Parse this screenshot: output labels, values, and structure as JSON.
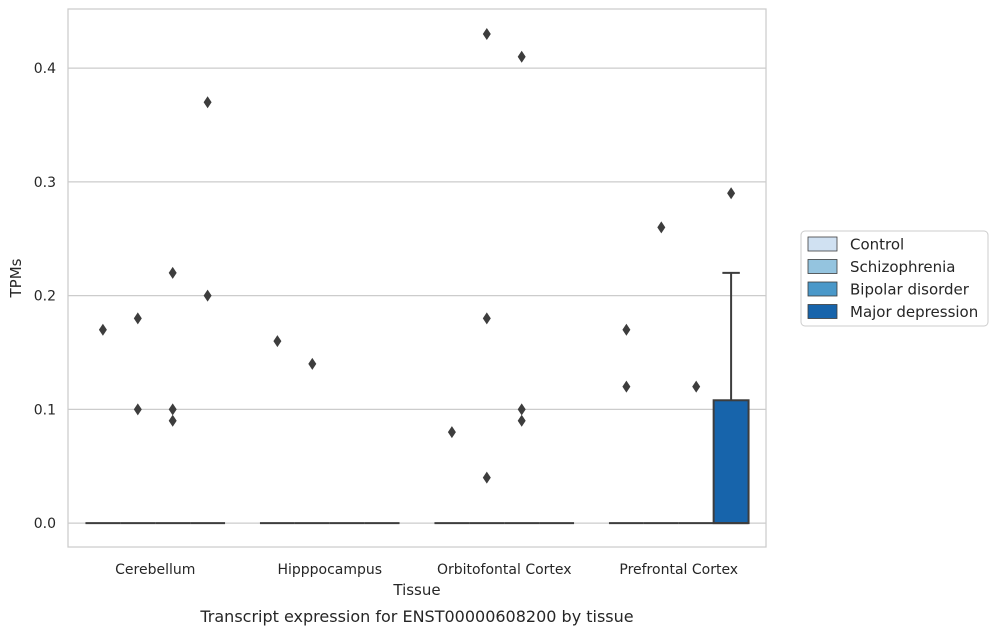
{
  "chart_data": {
    "type": "box",
    "title": "",
    "xlabel": "Tissue",
    "ylabel": "TPMs",
    "caption": "Transcript expression for ENST00000608200 by tissue",
    "categories": [
      "Cerebellum",
      "Hipppocampus",
      "Orbitofontal Cortex",
      "Prefrontal Cortex"
    ],
    "ylim": [
      -0.021,
      0.452
    ],
    "yticks": [
      0.0,
      0.1,
      0.2,
      0.3,
      0.4
    ],
    "ytick_labels": [
      "0.0",
      "0.1",
      "0.2",
      "0.3",
      "0.4"
    ],
    "grid": "horizontal",
    "legend_position": "right",
    "series": [
      {
        "name": "Control",
        "color": "#d0e1f2"
      },
      {
        "name": "Schizophrenia",
        "color": "#94c4df"
      },
      {
        "name": "Bipolar disorder",
        "color": "#4a98c9"
      },
      {
        "name": "Major depression",
        "color": "#1764ab"
      }
    ],
    "boxes": [
      {
        "category": 0,
        "series": 0,
        "q1": 0,
        "median": 0,
        "q3": 0,
        "whisker_low": 0,
        "whisker_high": 0,
        "outliers": [
          0.17
        ]
      },
      {
        "category": 0,
        "series": 1,
        "q1": 0,
        "median": 0,
        "q3": 0,
        "whisker_low": 0,
        "whisker_high": 0,
        "outliers": [
          0.18,
          0.1
        ]
      },
      {
        "category": 0,
        "series": 2,
        "q1": 0,
        "median": 0,
        "q3": 0,
        "whisker_low": 0,
        "whisker_high": 0,
        "outliers": [
          0.22,
          0.1,
          0.09
        ]
      },
      {
        "category": 0,
        "series": 3,
        "q1": 0,
        "median": 0,
        "q3": 0,
        "whisker_low": 0,
        "whisker_high": 0,
        "outliers": [
          0.37,
          0.2
        ]
      },
      {
        "category": 1,
        "series": 0,
        "q1": 0,
        "median": 0,
        "q3": 0,
        "whisker_low": 0,
        "whisker_high": 0,
        "outliers": [
          0.16
        ]
      },
      {
        "category": 1,
        "series": 1,
        "q1": 0,
        "median": 0,
        "q3": 0,
        "whisker_low": 0,
        "whisker_high": 0,
        "outliers": [
          0.14
        ]
      },
      {
        "category": 1,
        "series": 2,
        "q1": 0,
        "median": 0,
        "q3": 0,
        "whisker_low": 0,
        "whisker_high": 0,
        "outliers": []
      },
      {
        "category": 1,
        "series": 3,
        "q1": 0,
        "median": 0,
        "q3": 0,
        "whisker_low": 0,
        "whisker_high": 0,
        "outliers": []
      },
      {
        "category": 2,
        "series": 0,
        "q1": 0,
        "median": 0,
        "q3": 0,
        "whisker_low": 0,
        "whisker_high": 0,
        "outliers": [
          0.08
        ]
      },
      {
        "category": 2,
        "series": 1,
        "q1": 0,
        "median": 0,
        "q3": 0,
        "whisker_low": 0,
        "whisker_high": 0,
        "outliers": [
          0.43,
          0.18,
          0.04
        ]
      },
      {
        "category": 2,
        "series": 2,
        "q1": 0,
        "median": 0,
        "q3": 0,
        "whisker_low": 0,
        "whisker_high": 0,
        "outliers": [
          0.41,
          0.1,
          0.09
        ]
      },
      {
        "category": 2,
        "series": 3,
        "q1": 0,
        "median": 0,
        "q3": 0,
        "whisker_low": 0,
        "whisker_high": 0,
        "outliers": []
      },
      {
        "category": 3,
        "series": 0,
        "q1": 0,
        "median": 0,
        "q3": 0,
        "whisker_low": 0,
        "whisker_high": 0,
        "outliers": [
          0.17,
          0.12
        ]
      },
      {
        "category": 3,
        "series": 1,
        "q1": 0,
        "median": 0,
        "q3": 0,
        "whisker_low": 0,
        "whisker_high": 0,
        "outliers": [
          0.26
        ]
      },
      {
        "category": 3,
        "series": 2,
        "q1": 0,
        "median": 0,
        "q3": 0,
        "whisker_low": 0,
        "whisker_high": 0,
        "outliers": [
          0.12
        ]
      },
      {
        "category": 3,
        "series": 3,
        "q1": 0,
        "median": 0,
        "q3": 0.108,
        "whisker_low": 0,
        "whisker_high": 0.22,
        "outliers": [
          0.29
        ]
      }
    ]
  }
}
